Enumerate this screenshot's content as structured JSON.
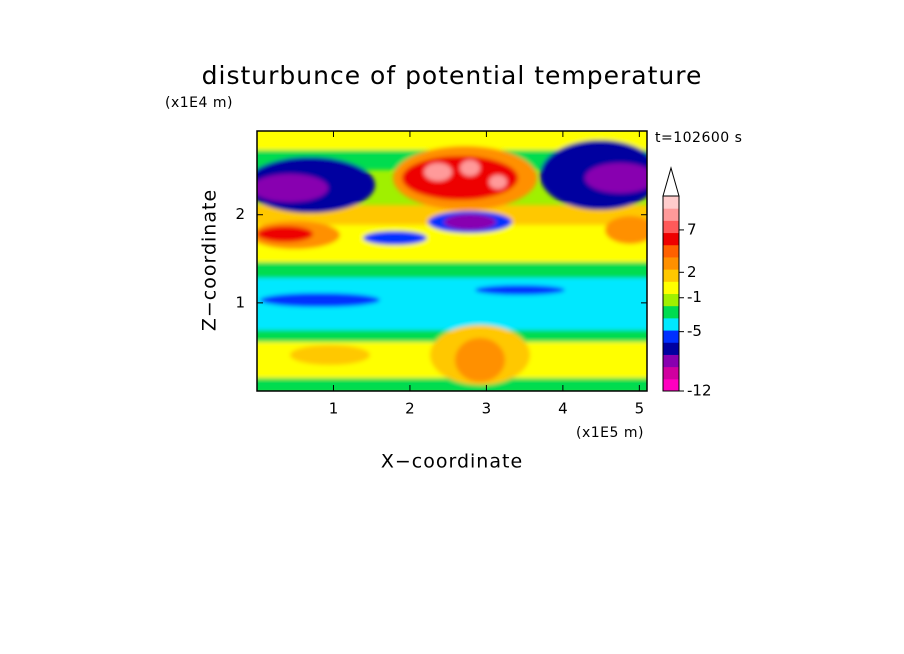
{
  "chart_data": {
    "type": "contour",
    "title": "disturbunce of potential temperature",
    "x_label": "X−coordinate",
    "y_label": "Z−coordinate",
    "x_unit": "(x1E5 m)",
    "y_unit": "(x1E4 m)",
    "annotation": "t=102600 s",
    "xlim": [
      0,
      5.1
    ],
    "ylim": [
      0,
      2.95
    ],
    "xticks": [
      1,
      2,
      3,
      4,
      5
    ],
    "yticks": [
      1,
      2
    ],
    "colorbar": {
      "clim": [
        -12,
        11
      ],
      "ticks": [
        -12,
        -5,
        -1,
        2,
        7
      ],
      "extend": "max",
      "colors": [
        "#ff00c0",
        "#d000a0",
        "#8800b0",
        "#0000a0",
        "#0030ff",
        "#00e8ff",
        "#00dc50",
        "#a0f000",
        "#ffff00",
        "#ffc800",
        "#ff9000",
        "#ff6000",
        "#ee0000",
        "#ff5a5a",
        "#ff9a9a",
        "#ffcccc"
      ]
    }
  }
}
